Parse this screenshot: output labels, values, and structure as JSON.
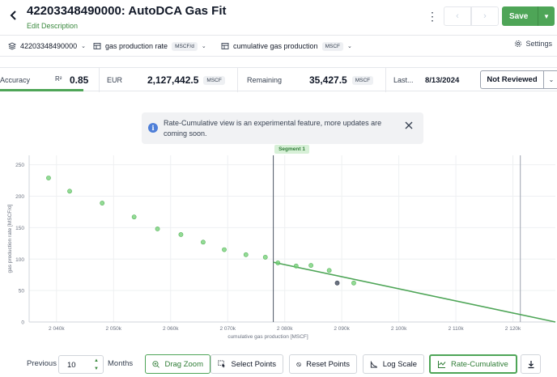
{
  "header": {
    "title": "42203348490000: AutoDCA Gas Fit",
    "edit_description": "Edit Description",
    "save_label": "Save"
  },
  "toolbar": {
    "well_id": "42203348490000",
    "rate_label": "gas production rate",
    "rate_unit": "MSCF/d",
    "cum_label": "cumulative gas production",
    "cum_unit": "MSCF",
    "settings_label": "Settings"
  },
  "stats": {
    "accuracy_label": "Accuracy",
    "r2_label": "R²",
    "r2_value": "0.85",
    "eur_label": "EUR",
    "eur_value": "2,127,442.5",
    "eur_unit": "MSCF",
    "remaining_label": "Remaining",
    "remaining_value": "35,427.5",
    "remaining_unit": "MSCF",
    "last_label": "Last...",
    "last_value": "8/13/2024",
    "review_label": "Not Reviewed"
  },
  "banner": {
    "text": "Rate-Cumulative view is an experimental feature, more updates are coming soon."
  },
  "chart_data": {
    "type": "scatter",
    "segment_label": "Segment 1",
    "xlabel": "cumulative gas production [MSCF]",
    "ylabel": "gas production rate [MSCF/d]",
    "xlim": [
      2035200,
      2127442.5
    ],
    "ylim": [
      0,
      265
    ],
    "x_ticks": [
      2040000,
      2050000,
      2060000,
      2070000,
      2080000,
      2090000,
      2100000,
      2110000,
      2120000
    ],
    "x_tick_labels": [
      "2 040k",
      "2 050k",
      "2 060k",
      "2 070k",
      "2 080k",
      "2 090k",
      "2 100k",
      "2 110k",
      "2 120k"
    ],
    "y_ticks": [
      0,
      50,
      100,
      150,
      200,
      250
    ],
    "y_tick_labels": [
      "0",
      "50",
      "100",
      "150",
      "200",
      "250"
    ],
    "points": [
      {
        "x": 2038600,
        "y": 229
      },
      {
        "x": 2042300,
        "y": 208
      },
      {
        "x": 2048000,
        "y": 189
      },
      {
        "x": 2053600,
        "y": 167
      },
      {
        "x": 2057700,
        "y": 148
      },
      {
        "x": 2061800,
        "y": 139
      },
      {
        "x": 2065700,
        "y": 127
      },
      {
        "x": 2069400,
        "y": 115
      },
      {
        "x": 2073200,
        "y": 107
      },
      {
        "x": 2076600,
        "y": 103
      },
      {
        "x": 2078800,
        "y": 94
      },
      {
        "x": 2082000,
        "y": 89
      },
      {
        "x": 2084600,
        "y": 90
      },
      {
        "x": 2087800,
        "y": 82
      },
      {
        "x": 2089200,
        "y": 62,
        "excluded": true
      },
      {
        "x": 2092100,
        "y": 62
      }
    ],
    "fit_line": {
      "x": [
        2078000,
        2127442.5
      ],
      "y": [
        95,
        0
      ]
    },
    "segment_start_x": 2078000,
    "segment_end_x": 2121300,
    "colors": {
      "point": "#6fcf72",
      "point_edge": "#58b35c",
      "fit": "#4ea557",
      "excluded": "#6b7280"
    }
  },
  "bottom": {
    "previous_label": "Previous",
    "months_value": "10",
    "months_label": "Months",
    "drag_zoom_label": "Drag Zoom",
    "select_points_label": "Select Points",
    "reset_points_label": "Reset Points",
    "log_scale_label": "Log Scale",
    "rate_cumulative_label": "Rate-Cumulative"
  },
  "colors": {
    "accent": "#4ea557",
    "accent_dark": "#2f7d36"
  }
}
